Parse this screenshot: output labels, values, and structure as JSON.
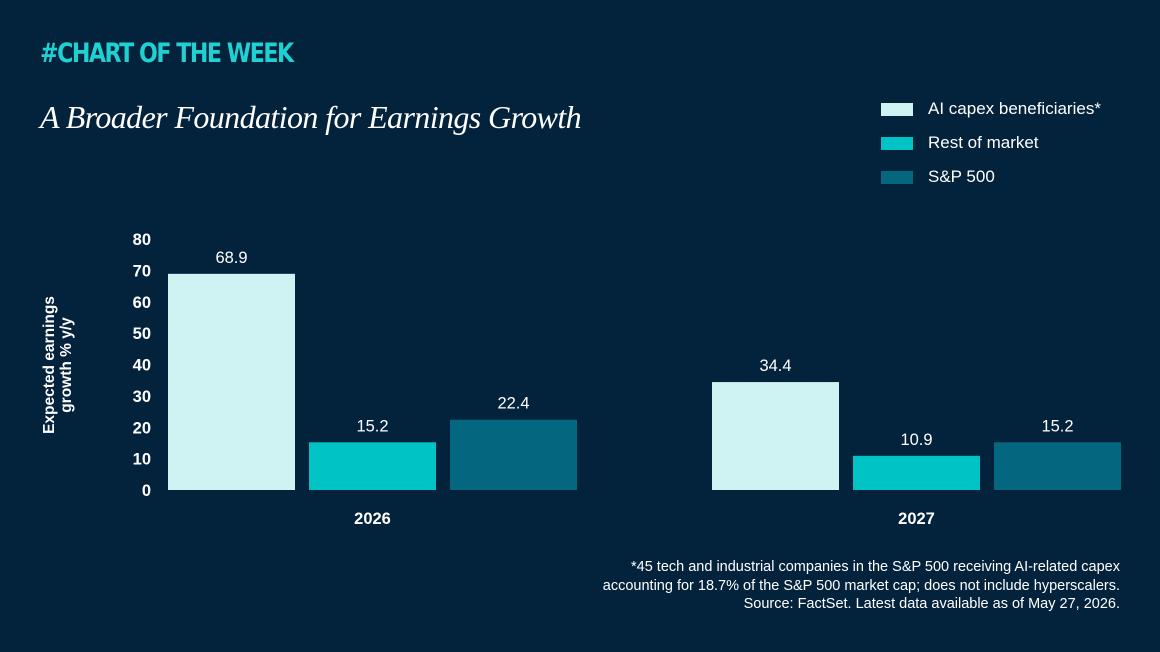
{
  "header": {
    "kicker": "#CHART OF THE WEEK",
    "title": "A Broader Foundation for Earnings Growth"
  },
  "colors": {
    "background": "#03223c",
    "kicker": "#1fd1d3",
    "series_1": "#cff3f2",
    "series_2": "#00c3c5",
    "series_3": "#056680"
  },
  "legend": [
    {
      "label": "AI capex beneficiaries*",
      "color": "#cff3f2"
    },
    {
      "label": "Rest of market",
      "color": "#00c3c5"
    },
    {
      "label": "S&P 500",
      "color": "#056680"
    }
  ],
  "footnote": {
    "line1": "*45 tech and industrial companies in the S&P 500 receiving AI-related capex",
    "line2": "accounting for 18.7% of the S&P 500 market cap; does not include hyperscalers.",
    "line3": "Source: FactSet. Latest data available as of May 27, 2026."
  },
  "chart_data": {
    "type": "bar",
    "categories": [
      "2026",
      "2027"
    ],
    "series": [
      {
        "name": "AI capex beneficiaries*",
        "values": [
          68.9,
          34.4
        ],
        "labels": [
          "68.9",
          "34.4"
        ],
        "color": "#cff3f2"
      },
      {
        "name": "Rest of market",
        "values": [
          15.2,
          10.9
        ],
        "labels": [
          "15.2",
          "10.9"
        ],
        "color": "#00c3c5"
      },
      {
        "name": "S&P 500",
        "values": [
          22.4,
          15.2
        ],
        "labels": [
          "22.4",
          "15.2"
        ],
        "color": "#056680"
      }
    ],
    "ylabel_lines": [
      "Expected earnings",
      "growth % y/y"
    ],
    "ylim": [
      0,
      80
    ],
    "yticks": [
      "0",
      "10",
      "20",
      "30",
      "40",
      "50",
      "60",
      "70",
      "80"
    ],
    "grid": false,
    "legend_position": "top-right"
  }
}
